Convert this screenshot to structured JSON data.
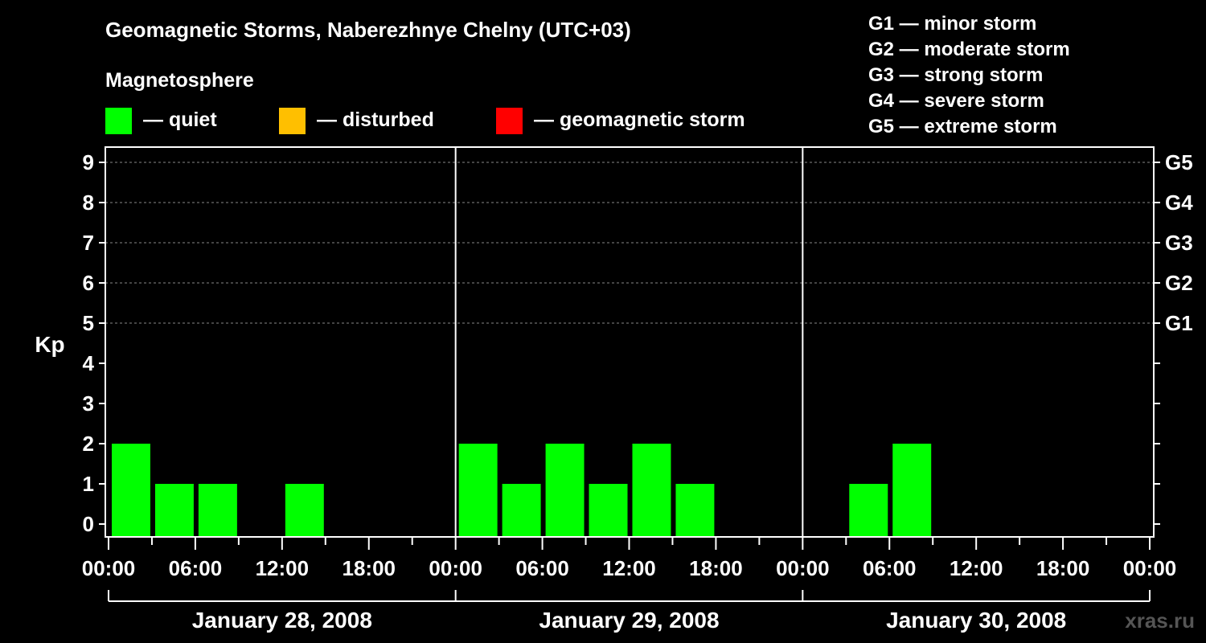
{
  "chart_data": {
    "type": "bar",
    "title": "Geomagnetic Storms, Naberezhnye Chelny (UTC+03)",
    "ylabel": "Kp",
    "ylim": [
      0,
      9
    ],
    "yticks": [
      "0",
      "1",
      "2",
      "3",
      "4",
      "5",
      "6",
      "7",
      "8",
      "9"
    ],
    "right_ticks": [
      {
        "kp": 5,
        "label": "G1"
      },
      {
        "kp": 6,
        "label": "G2"
      },
      {
        "kp": 7,
        "label": "G3"
      },
      {
        "kp": 8,
        "label": "G4"
      },
      {
        "kp": 9,
        "label": "G5"
      }
    ],
    "xticks": [
      "00:00",
      "06:00",
      "12:00",
      "18:00",
      "00:00",
      "06:00",
      "12:00",
      "18:00",
      "00:00",
      "06:00",
      "12:00",
      "18:00",
      "00:00"
    ],
    "days": [
      "January 28, 2008",
      "January 29, 2008",
      "January 30, 2008"
    ],
    "series": [
      {
        "name": "Kp",
        "values": [
          2,
          1,
          1,
          0,
          1,
          0,
          0,
          0,
          2,
          1,
          2,
          1,
          2,
          1,
          0,
          0,
          0,
          1,
          2,
          0,
          0,
          0,
          0,
          0
        ]
      }
    ],
    "legend_title": "Magnetosphere",
    "legend": [
      {
        "label": "— quiet",
        "color": "#00ff00"
      },
      {
        "label": "— disturbed",
        "color": "#ffbf00"
      },
      {
        "label": "— geomagnetic storm",
        "color": "#ff0000"
      }
    ],
    "storm_scale": [
      "G1 — minor storm",
      "G2 — moderate storm",
      "G3 — strong storm",
      "G4 — severe storm",
      "G5 — extreme storm"
    ],
    "watermark": "xras.ru"
  }
}
